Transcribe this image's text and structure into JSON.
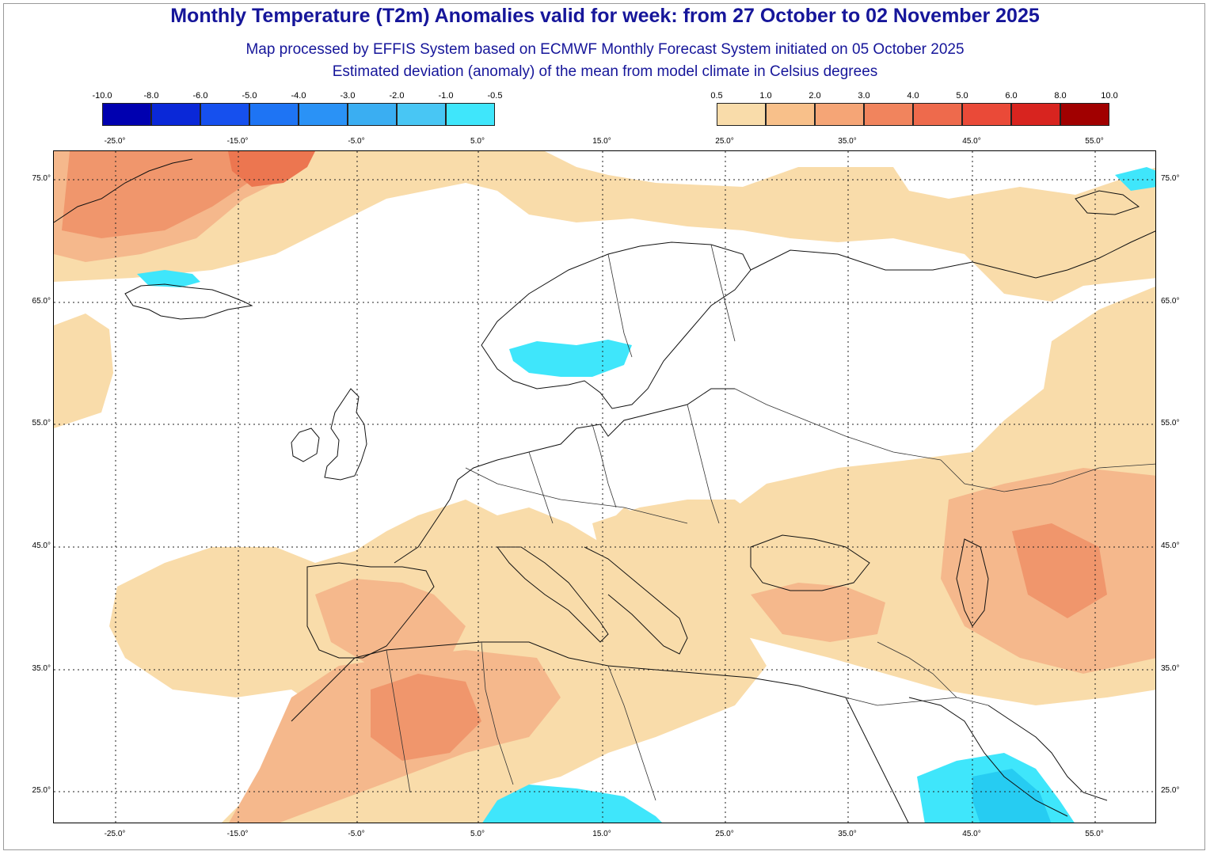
{
  "header": {
    "title": "Monthly Temperature (T2m) Anomalies valid for week: from 27 October to 02 November 2025",
    "subtitle_1": "Map processed by EFFIS System based on ECMWF Monthly Forecast System initiated on 05 October 2025",
    "subtitle_2": "Estimated deviation (anomaly) of the mean from model climate in Celsius degrees"
  },
  "legend": {
    "negative": {
      "labels": [
        "-10.0",
        "-8.0",
        "-6.0",
        "-5.0",
        "-4.0",
        "-3.0",
        "-2.0",
        "-1.0",
        "-0.5"
      ],
      "colors": [
        "#0000b0",
        "#0a28d8",
        "#1650ee",
        "#1e74f4",
        "#2a92f6",
        "#3aaef2",
        "#48c6f4",
        "#3fe6fb"
      ]
    },
    "positive": {
      "labels": [
        "0.5",
        "1.0",
        "2.0",
        "3.0",
        "4.0",
        "5.0",
        "6.0",
        "8.0",
        "10.0"
      ],
      "colors": [
        "#f9dcaa",
        "#f8c08a",
        "#f5a576",
        "#f1845d",
        "#ee6a4c",
        "#ea4a38",
        "#d8241f",
        "#a10000"
      ]
    }
  },
  "axes": {
    "longitudes": [
      "-25.0°",
      "-15.0°",
      "-5.0°",
      "5.0°",
      "15.0°",
      "25.0°",
      "35.0°",
      "45.0°",
      "55.0°"
    ],
    "latitudes": [
      "75.0°",
      "65.0°",
      "55.0°",
      "45.0°",
      "35.0°",
      "25.0°"
    ]
  },
  "map": {
    "fill_colors": {
      "weak_warm": "#f9dcaa",
      "moderate_warm": "#f5b88c",
      "strong_warm": "#f0966c",
      "warm_peak": "#ec7650",
      "weak_cold": "#3fe6fb",
      "moderate_cold": "#26ccf2"
    }
  }
}
